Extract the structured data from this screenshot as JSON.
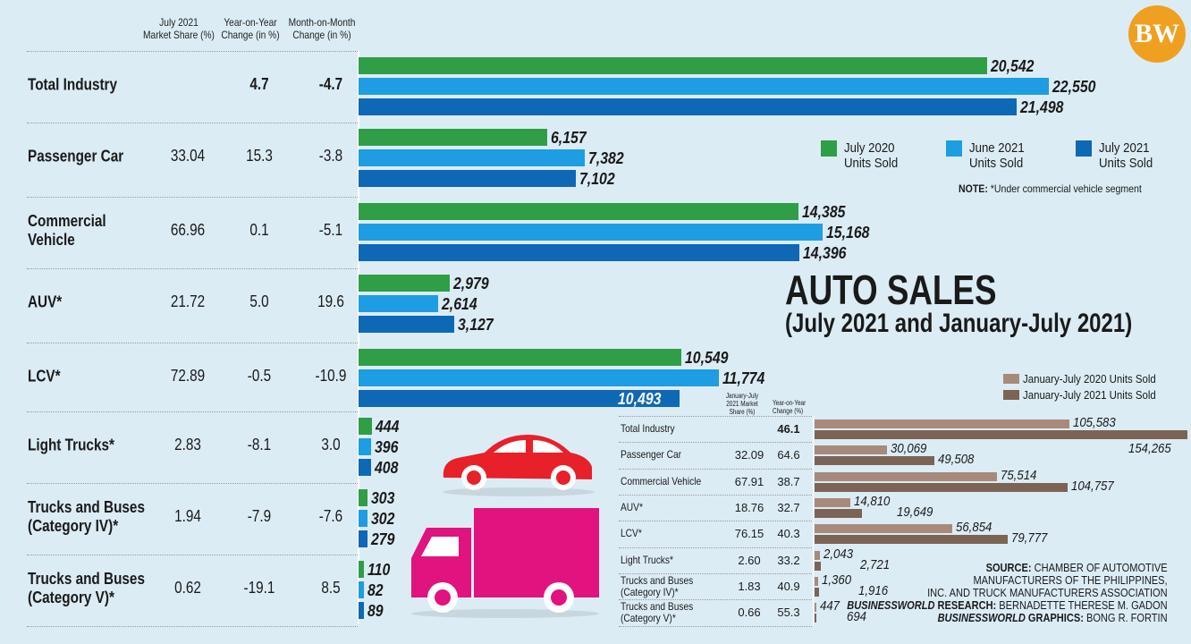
{
  "logo": "BW",
  "title": "AUTO SALES",
  "subtitle": "(July 2021 and January-July 2021)",
  "note_label": "NOTE:",
  "note_text": " *Under commercial vehicle segment",
  "source_lines": [
    {
      "b": "SOURCE:",
      "t": " CHAMBER OF AUTOMOTIVE"
    },
    {
      "b": "",
      "t": "MANUFACTURERS OF THE PHILIPPINES,"
    },
    {
      "b": "",
      "t": "INC. AND TRUCK MANUFACTURERS ASSOCIATION"
    },
    {
      "i": "BUSINESSWORLD",
      "b": " RESEARCH:",
      "t": " BERNADETTE THERESE M. GADON"
    },
    {
      "i": "BUSINESSWORLD",
      "b": " GRAPHICS:",
      "t": " BONG R. FORTIN"
    }
  ],
  "colors": {
    "background": "#dcecf5",
    "july2020": "#2f9e47",
    "june2021": "#1e9de2",
    "july2021": "#0f68b5",
    "jj2020": "#a78a7c",
    "jj2021": "#7b6456",
    "car": "#e8202a",
    "truck": "#e0137f"
  },
  "icons": [
    "car-icon",
    "truck-icon"
  ],
  "chart_data": [
    {
      "type": "bar",
      "orientation": "horizontal",
      "columns": [
        "July 2021 Market Share (%)",
        "Year-on-Year Change  (in %)",
        "Month-on-Month Change (in %)"
      ],
      "categories": [
        "Total Industry",
        "Passenger Car",
        "Commercial Vehicle",
        "AUV*",
        "LCV*",
        "Light Trucks*",
        "Trucks and Buses (Category IV)*",
        "Trucks and Buses (Category V)*"
      ],
      "market_share": [
        "",
        "33.04",
        "66.96",
        "21.72",
        "72.89",
        "2.83",
        "1.94",
        "0.62"
      ],
      "yoy": [
        "4.7",
        "15.3",
        "0.1",
        "5.0",
        "-0.5",
        "-8.1",
        "-7.9",
        "-19.1"
      ],
      "mom": [
        "-4.7",
        "-3.8",
        "-5.1",
        "19.6",
        "-10.9",
        "3.0",
        "-7.6",
        "8.5"
      ],
      "series": [
        {
          "name": "July 2020 Units Sold",
          "values": [
            20542,
            6157,
            14385,
            2979,
            10549,
            444,
            303,
            110
          ]
        },
        {
          "name": "June 2021 Units Sold",
          "values": [
            22550,
            7382,
            15168,
            2614,
            11774,
            396,
            302,
            82
          ]
        },
        {
          "name": "July 2021 Units Sold",
          "values": [
            21498,
            7102,
            14396,
            3127,
            10493,
            408,
            279,
            89
          ]
        }
      ],
      "legend": "top-right"
    },
    {
      "type": "bar",
      "orientation": "horizontal",
      "columns": [
        "January-July 2021 Market Share (%)",
        "Year-on-Year Change (%)"
      ],
      "categories": [
        "Total Industry",
        "Passenger Car",
        "Commercial Vehicle",
        "AUV*",
        "LCV*",
        "Light Trucks*",
        "Trucks and Buses (Category IV)*",
        "Trucks and Buses (Category V)*"
      ],
      "market_share": [
        "",
        "32.09",
        "67.91",
        "18.76",
        "76.15",
        "2.60",
        "1.83",
        "0.66"
      ],
      "yoy": [
        "46.1",
        "64.6",
        "38.7",
        "32.7",
        "40.3",
        "33.2",
        "40.9",
        "55.3"
      ],
      "series": [
        {
          "name": "January-July 2020 Units Sold",
          "values": [
            105583,
            30069,
            75514,
            14810,
            56854,
            2043,
            1360,
            447
          ]
        },
        {
          "name": "January-July 2021 Units Sold",
          "values": [
            154265,
            49508,
            104757,
            19649,
            79777,
            2721,
            1916,
            694
          ]
        }
      ],
      "legend": "top-right"
    }
  ]
}
